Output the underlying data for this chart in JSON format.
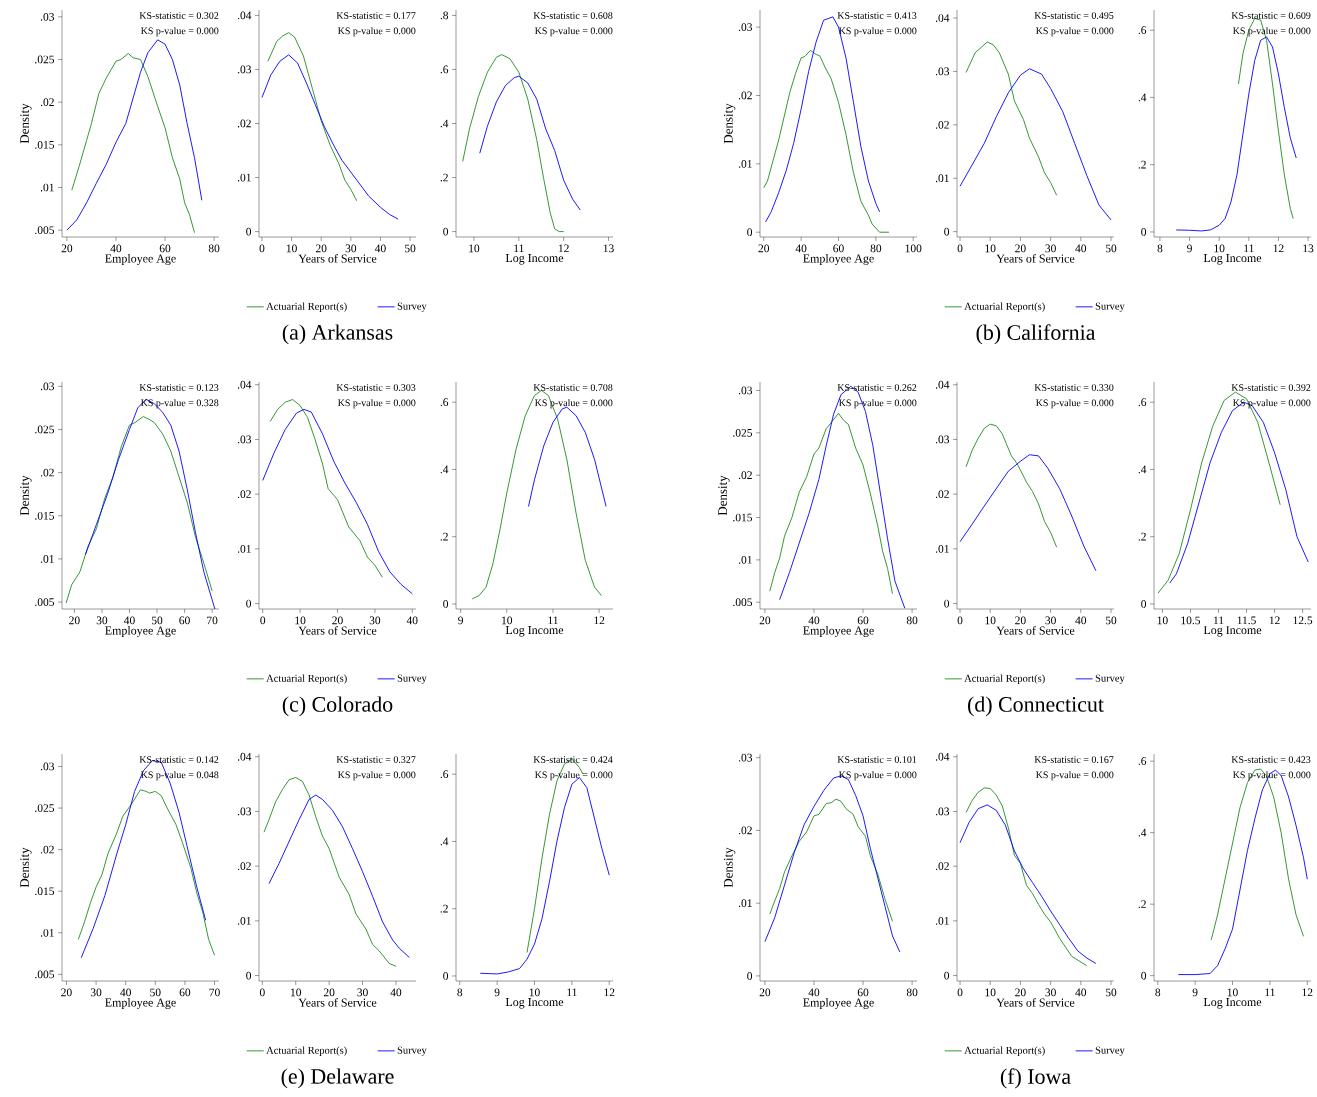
{
  "chart_data": [
    {
      "type": "line",
      "xlabel": "Employee Age",
      "ylabel": "Density",
      "xlim": [
        18,
        82
      ],
      "ylim": [
        0.0042,
        0.0308
      ],
      "xticks": [
        20,
        40,
        60,
        80
      ],
      "yticks": [
        {
          "value": 0.005,
          "label": ".005"
        },
        {
          "value": 0.01,
          "label": ".01"
        },
        {
          "value": 0.015,
          "label": ".015"
        },
        {
          "value": 0.02,
          "label": ".02"
        },
        {
          "value": 0.025,
          "label": ".025"
        },
        {
          "value": 0.03,
          "label": ".03"
        }
      ],
      "annotations": [
        "KS-statistic = 0.302",
        "KS p-value = 0.000"
      ],
      "series": [
        {
          "color": "#1e8c1e",
          "x": [
            22,
            25,
            28,
            30,
            33,
            36,
            40,
            42,
            45,
            47,
            50,
            53,
            57,
            60,
            63,
            66,
            68,
            70,
            72
          ],
          "values": [
            0.0097,
            0.0125,
            0.0155,
            0.0175,
            0.021,
            0.0228,
            0.0248,
            0.025,
            0.0257,
            0.0252,
            0.025,
            0.023,
            0.0195,
            0.017,
            0.0135,
            0.011,
            0.0082,
            0.0068,
            0.0047
          ]
        },
        {
          "color": "#0000ff",
          "x": [
            20,
            24,
            28,
            32,
            36,
            40,
            44,
            47,
            50,
            53,
            57,
            60,
            63,
            66,
            69,
            72,
            75
          ],
          "values": [
            0.005,
            0.0062,
            0.0082,
            0.0105,
            0.0127,
            0.0153,
            0.0175,
            0.0205,
            0.0235,
            0.0258,
            0.0273,
            0.0268,
            0.025,
            0.022,
            0.0175,
            0.0135,
            0.0085
          ]
        }
      ]
    },
    {
      "type": "line",
      "xlabel": "Years of Service",
      "title": "(a) Arkansas",
      "legend": "bottom",
      "xlim": [
        -1,
        52
      ],
      "ylim": [
        -0.001,
        0.041
      ],
      "xticks": [
        0,
        10,
        20,
        30,
        40,
        50
      ],
      "yticks": [
        0,
        {
          "value": 0.01,
          "label": ".01"
        },
        {
          "value": 0.02,
          "label": ".02"
        },
        {
          "value": 0.03,
          "label": ".03"
        },
        {
          "value": 0.04,
          "label": ".04"
        }
      ],
      "annotations": [
        "KS-statistic = 0.177",
        "KS p-value = 0.000"
      ],
      "series": [
        {
          "name": "Actuarial Report(s)",
          "color": "#1e8c1e",
          "x": [
            2,
            5,
            7,
            9,
            11,
            14,
            17,
            20,
            23,
            26,
            28,
            30,
            32
          ],
          "values": [
            0.0315,
            0.0352,
            0.0362,
            0.0368,
            0.036,
            0.0325,
            0.0265,
            0.0205,
            0.016,
            0.0125,
            0.0095,
            0.0078,
            0.0057
          ]
        },
        {
          "name": "Survey",
          "color": "#0000ff",
          "x": [
            0,
            3,
            6,
            9,
            12,
            15,
            18,
            21,
            24,
            27,
            30,
            33,
            36,
            40,
            43,
            46
          ],
          "values": [
            0.0248,
            0.029,
            0.0315,
            0.0327,
            0.0312,
            0.0275,
            0.0235,
            0.0195,
            0.0162,
            0.0132,
            0.011,
            0.0088,
            0.0066,
            0.0045,
            0.0032,
            0.0023
          ]
        }
      ]
    },
    {
      "type": "line",
      "xlabel": "Log Income",
      "xlim": [
        9.6,
        13.1
      ],
      "ylim": [
        -0.02,
        0.82
      ],
      "xticks": [
        10,
        11,
        12,
        13
      ],
      "yticks": [
        0,
        {
          "value": 0.2,
          "label": ".2"
        },
        {
          "value": 0.4,
          "label": ".4"
        },
        {
          "value": 0.6,
          "label": ".6"
        },
        {
          "value": 0.8,
          "label": ".8"
        }
      ],
      "annotations": [
        "KS-statistic = 0.608",
        "KS p-value = 0.000"
      ],
      "series": [
        {
          "color": "#1e8c1e",
          "x": [
            9.75,
            9.9,
            10.1,
            10.3,
            10.5,
            10.62,
            10.8,
            11.0,
            11.2,
            11.4,
            11.55,
            11.7,
            11.8,
            11.9,
            12.0
          ],
          "values": [
            0.26,
            0.38,
            0.5,
            0.59,
            0.645,
            0.655,
            0.64,
            0.59,
            0.49,
            0.34,
            0.2,
            0.07,
            0.01,
            0,
            0
          ]
        },
        {
          "color": "#0000ff",
          "x": [
            10.13,
            10.3,
            10.5,
            10.7,
            10.9,
            11.0,
            11.2,
            11.4,
            11.6,
            11.8,
            12.0,
            12.2,
            12.37
          ],
          "values": [
            0.29,
            0.39,
            0.48,
            0.54,
            0.57,
            0.575,
            0.55,
            0.49,
            0.38,
            0.3,
            0.19,
            0.12,
            0.08
          ]
        }
      ]
    },
    {
      "type": "line",
      "xlabel": "Employee Age",
      "ylabel": "Density",
      "xlim": [
        18,
        102
      ],
      "ylim": [
        -0.0007,
        0.0325
      ],
      "xticks": [
        20,
        40,
        60,
        80,
        100
      ],
      "yticks": [
        0,
        {
          "value": 0.01,
          "label": ".01"
        },
        {
          "value": 0.02,
          "label": ".02"
        },
        {
          "value": 0.03,
          "label": ".03"
        }
      ],
      "annotations": [
        "KS-statistic = 0.413",
        "KS p-value = 0.000"
      ],
      "series": [
        {
          "color": "#1e8c1e",
          "x": [
            20,
            22,
            25,
            28,
            31,
            34,
            37,
            40,
            42,
            45,
            48,
            50,
            53,
            56,
            60,
            64,
            68,
            72,
            76,
            78,
            82,
            87
          ],
          "values": [
            0.0065,
            0.0075,
            0.0105,
            0.0135,
            0.017,
            0.0205,
            0.0232,
            0.0255,
            0.0257,
            0.0266,
            0.026,
            0.0258,
            0.024,
            0.0225,
            0.019,
            0.0143,
            0.0087,
            0.0045,
            0.0025,
            0.0012,
            0,
            0
          ]
        },
        {
          "color": "#0000ff",
          "x": [
            21,
            24,
            28,
            32,
            36,
            40,
            44,
            48,
            52,
            57,
            60,
            64,
            68,
            72,
            76,
            80,
            82
          ],
          "values": [
            0.0015,
            0.003,
            0.0058,
            0.009,
            0.013,
            0.018,
            0.0235,
            0.0278,
            0.031,
            0.0315,
            0.03,
            0.0255,
            0.019,
            0.0125,
            0.0075,
            0.0042,
            0.003
          ]
        }
      ]
    },
    {
      "type": "line",
      "xlabel": "Years of Service",
      "title": "(b) California",
      "legend": "bottom",
      "xlim": [
        -1,
        51
      ],
      "ylim": [
        -0.001,
        0.0415
      ],
      "xticks": [
        0,
        10,
        20,
        30,
        40,
        50
      ],
      "yticks": [
        0,
        {
          "value": 0.01,
          "label": ".01"
        },
        {
          "value": 0.02,
          "label": ".02"
        },
        {
          "value": 0.03,
          "label": ".03"
        },
        {
          "value": 0.04,
          "label": ".04"
        }
      ],
      "annotations": [
        "KS-statistic = 0.495",
        "KS p-value = 0.000"
      ],
      "series": [
        {
          "name": "Actuarial Report(s)",
          "color": "#1e8c1e",
          "x": [
            2,
            5,
            7,
            9,
            11,
            13,
            16,
            18,
            21,
            23,
            26,
            28,
            30,
            32
          ],
          "values": [
            0.0298,
            0.0335,
            0.0345,
            0.0355,
            0.035,
            0.0335,
            0.0295,
            0.0245,
            0.021,
            0.0175,
            0.014,
            0.011,
            0.0092,
            0.0068
          ]
        },
        {
          "name": "Survey",
          "color": "#0000ff",
          "x": [
            0,
            4,
            8,
            12,
            16,
            20,
            23,
            27,
            30,
            34,
            38,
            42,
            46,
            50
          ],
          "values": [
            0.0085,
            0.0125,
            0.0165,
            0.0215,
            0.026,
            0.0293,
            0.0305,
            0.0295,
            0.0268,
            0.0225,
            0.0165,
            0.0105,
            0.005,
            0.0022
          ]
        }
      ]
    },
    {
      "type": "line",
      "xlabel": "Log Income",
      "xlim": [
        7.8,
        13.1
      ],
      "ylim": [
        -0.015,
        0.66
      ],
      "xticks": [
        8,
        9,
        10,
        11,
        12,
        13
      ],
      "yticks": [
        0,
        {
          "value": 0.2,
          "label": ".2"
        },
        {
          "value": 0.4,
          "label": ".4"
        },
        {
          "value": 0.6,
          "label": ".6"
        }
      ],
      "annotations": [
        "KS-statistic = 0.609",
        "KS p-value = 0.000"
      ],
      "series": [
        {
          "color": "#1e8c1e",
          "x": [
            10.65,
            10.8,
            11.0,
            11.2,
            11.4,
            11.6,
            11.8,
            12.0,
            12.2,
            12.4,
            12.5
          ],
          "values": [
            0.44,
            0.53,
            0.6,
            0.635,
            0.63,
            0.57,
            0.44,
            0.3,
            0.17,
            0.07,
            0.04
          ]
        },
        {
          "color": "#0000ff",
          "x": [
            8.55,
            9.0,
            9.4,
            9.7,
            10.0,
            10.2,
            10.4,
            10.6,
            10.8,
            11.0,
            11.2,
            11.4,
            11.6,
            11.8,
            12.0,
            12.2,
            12.4,
            12.6
          ],
          "values": [
            0.006,
            0.005,
            0.003,
            0.006,
            0.02,
            0.04,
            0.09,
            0.17,
            0.29,
            0.41,
            0.51,
            0.57,
            0.58,
            0.55,
            0.47,
            0.37,
            0.28,
            0.22
          ]
        }
      ]
    },
    {
      "type": "line",
      "xlabel": "Employee Age",
      "ylabel": "Density",
      "xlim": [
        15.5,
        72.5
      ],
      "ylim": [
        0.0042,
        0.0305
      ],
      "xticks": [
        20,
        30,
        40,
        50,
        60,
        70
      ],
      "yticks": [
        {
          "value": 0.005,
          "label": ".005"
        },
        {
          "value": 0.01,
          "label": ".01"
        },
        {
          "value": 0.015,
          "label": ".015"
        },
        {
          "value": 0.02,
          "label": ".02"
        },
        {
          "value": 0.025,
          "label": ".025"
        },
        {
          "value": 0.03,
          "label": ".03"
        }
      ],
      "annotations": [
        "KS-statistic = 0.123",
        "KS p-value = 0.328"
      ],
      "series": [
        {
          "color": "#1e8c1e",
          "x": [
            17,
            19,
            22,
            25,
            28,
            31,
            34,
            37,
            40,
            42,
            45,
            47,
            49,
            52,
            55,
            58,
            61,
            64,
            67,
            70
          ],
          "values": [
            0.0049,
            0.007,
            0.0085,
            0.0115,
            0.0135,
            0.017,
            0.0195,
            0.023,
            0.0255,
            0.0258,
            0.0265,
            0.0262,
            0.0258,
            0.0245,
            0.0225,
            0.0195,
            0.0165,
            0.0125,
            0.0095,
            0.0063
          ]
        },
        {
          "color": "#0000ff",
          "x": [
            24,
            28,
            32,
            36,
            40,
            43,
            46,
            49,
            52,
            55,
            58,
            61,
            64,
            67,
            71
          ],
          "values": [
            0.0105,
            0.014,
            0.0175,
            0.0215,
            0.025,
            0.0275,
            0.0285,
            0.028,
            0.027,
            0.0255,
            0.0225,
            0.018,
            0.013,
            0.0085,
            0.0042
          ]
        }
      ]
    },
    {
      "type": "line",
      "xlabel": "Years of Service",
      "title": "(c) Colorado",
      "legend": "bottom",
      "xlim": [
        -1,
        41
      ],
      "ylim": [
        -0.001,
        0.0405
      ],
      "xticks": [
        0,
        10,
        20,
        30,
        40
      ],
      "yticks": [
        0,
        {
          "value": 0.01,
          "label": ".01"
        },
        {
          "value": 0.02,
          "label": ".02"
        },
        {
          "value": 0.03,
          "label": ".03"
        },
        {
          "value": 0.04,
          "label": ".04"
        }
      ],
      "annotations": [
        "KS-statistic = 0.303",
        "KS p-value = 0.000"
      ],
      "series": [
        {
          "name": "Actuarial Report(s)",
          "color": "#1e8c1e",
          "x": [
            2,
            4,
            6,
            8,
            10,
            12,
            14,
            16,
            17.5,
            20,
            23,
            26,
            28,
            30,
            32
          ],
          "values": [
            0.0333,
            0.0355,
            0.0368,
            0.0373,
            0.0362,
            0.034,
            0.03,
            0.0255,
            0.021,
            0.019,
            0.014,
            0.0115,
            0.0085,
            0.007,
            0.0048
          ]
        },
        {
          "name": "Survey",
          "color": "#0000ff",
          "x": [
            0,
            3,
            6,
            9,
            11,
            13,
            16,
            19,
            22,
            25,
            28,
            31,
            34,
            37,
            40
          ],
          "values": [
            0.0225,
            0.0275,
            0.0318,
            0.0348,
            0.0355,
            0.035,
            0.031,
            0.026,
            0.022,
            0.0185,
            0.0145,
            0.0095,
            0.0058,
            0.0035,
            0.0018
          ]
        }
      ]
    },
    {
      "type": "line",
      "xlabel": "Log Income",
      "xlim": [
        8.9,
        12.3
      ],
      "ylim": [
        -0.015,
        0.66
      ],
      "xticks": [
        9,
        10,
        11,
        12
      ],
      "yticks": [
        0,
        {
          "value": 0.2,
          "label": ".2"
        },
        {
          "value": 0.4,
          "label": ".4"
        },
        {
          "value": 0.6,
          "label": ".6"
        }
      ],
      "annotations": [
        "KS-statistic = 0.708",
        "KS p-value = 0.000"
      ],
      "series": [
        {
          "color": "#1e8c1e",
          "x": [
            9.25,
            9.4,
            9.55,
            9.7,
            9.85,
            10.0,
            10.2,
            10.4,
            10.6,
            10.75,
            10.9,
            11.1,
            11.3,
            11.5,
            11.7,
            11.9,
            12.05
          ],
          "values": [
            0.015,
            0.025,
            0.05,
            0.12,
            0.22,
            0.33,
            0.46,
            0.56,
            0.62,
            0.635,
            0.62,
            0.55,
            0.43,
            0.27,
            0.13,
            0.05,
            0.025
          ]
        },
        {
          "color": "#0000ff",
          "x": [
            10.47,
            10.6,
            10.8,
            11.0,
            11.2,
            11.3,
            11.5,
            11.7,
            11.9,
            12.15
          ],
          "values": [
            0.29,
            0.37,
            0.47,
            0.54,
            0.58,
            0.585,
            0.56,
            0.51,
            0.43,
            0.29
          ]
        }
      ]
    },
    {
      "type": "line",
      "xlabel": "Employee Age",
      "ylabel": "Density",
      "xlim": [
        18,
        82
      ],
      "ylim": [
        0.0042,
        0.031
      ],
      "xticks": [
        20,
        40,
        60,
        80
      ],
      "yticks": [
        {
          "value": 0.005,
          "label": ".005"
        },
        {
          "value": 0.01,
          "label": ".01"
        },
        {
          "value": 0.015,
          "label": ".015"
        },
        {
          "value": 0.02,
          "label": ".02"
        },
        {
          "value": 0.025,
          "label": ".025"
        },
        {
          "value": 0.03,
          "label": ".03"
        }
      ],
      "annotations": [
        "KS-statistic = 0.262",
        "KS p-value = 0.000"
      ],
      "series": [
        {
          "color": "#1e8c1e",
          "x": [
            22,
            24,
            26,
            28,
            31,
            34,
            37,
            40,
            42,
            45,
            47,
            50,
            52,
            54,
            57,
            60,
            63,
            66,
            68,
            70,
            72
          ],
          "values": [
            0.0063,
            0.0085,
            0.0102,
            0.0128,
            0.015,
            0.018,
            0.0198,
            0.0225,
            0.0232,
            0.0255,
            0.0262,
            0.0273,
            0.0265,
            0.026,
            0.0232,
            0.0212,
            0.0178,
            0.014,
            0.011,
            0.009,
            0.006
          ]
        },
        {
          "color": "#0000ff",
          "x": [
            26,
            30,
            34,
            38,
            42,
            45,
            48,
            51,
            55,
            58,
            61,
            64,
            67,
            70,
            73,
            77
          ],
          "values": [
            0.0053,
            0.0085,
            0.012,
            0.0155,
            0.0195,
            0.0235,
            0.0272,
            0.0295,
            0.0305,
            0.0298,
            0.0275,
            0.0235,
            0.018,
            0.0125,
            0.0075,
            0.0043
          ]
        }
      ]
    },
    {
      "type": "line",
      "xlabel": "Years of Service",
      "title": "(d) Connecticut",
      "legend": "bottom",
      "xlim": [
        -1,
        51
      ],
      "ylim": [
        -0.001,
        0.0405
      ],
      "xticks": [
        0,
        10,
        20,
        30,
        40,
        50
      ],
      "yticks": [
        0,
        {
          "value": 0.01,
          "label": ".01"
        },
        {
          "value": 0.02,
          "label": ".02"
        },
        {
          "value": 0.03,
          "label": ".03"
        },
        {
          "value": 0.04,
          "label": ".04"
        }
      ],
      "annotations": [
        "KS-statistic = 0.330",
        "KS p-value = 0.000"
      ],
      "series": [
        {
          "name": "Actuarial Report(s)",
          "color": "#1e8c1e",
          "x": [
            2,
            4,
            6,
            8,
            10,
            12,
            14,
            17,
            19,
            22,
            24,
            26,
            28,
            30,
            32
          ],
          "values": [
            0.025,
            0.028,
            0.0302,
            0.032,
            0.0328,
            0.0325,
            0.031,
            0.027,
            0.0255,
            0.0222,
            0.0205,
            0.0182,
            0.015,
            0.013,
            0.0103
          ]
        },
        {
          "name": "Survey",
          "color": "#0000ff",
          "x": [
            0,
            4,
            8,
            12,
            16,
            20,
            23,
            26,
            29,
            33,
            37,
            41,
            45
          ],
          "values": [
            0.0113,
            0.0145,
            0.0178,
            0.021,
            0.0242,
            0.026,
            0.0272,
            0.027,
            0.0248,
            0.021,
            0.016,
            0.0105,
            0.006
          ]
        }
      ]
    },
    {
      "type": "line",
      "xlabel": "Log Income",
      "xlim": [
        9.85,
        12.65
      ],
      "ylim": [
        -0.015,
        0.66
      ],
      "xticks": [
        10,
        10.5,
        11,
        11.5,
        12,
        12.5
      ],
      "yticks": [
        0,
        {
          "value": 0.2,
          "label": ".2"
        },
        {
          "value": 0.4,
          "label": ".4"
        },
        {
          "value": 0.6,
          "label": ".6"
        }
      ],
      "annotations": [
        "KS-statistic = 0.392",
        "KS p-value = 0.000"
      ],
      "series": [
        {
          "color": "#1e8c1e",
          "x": [
            9.92,
            10.1,
            10.3,
            10.5,
            10.7,
            10.9,
            11.1,
            11.3,
            11.5,
            11.7,
            11.9,
            12.1
          ],
          "values": [
            0.032,
            0.07,
            0.15,
            0.28,
            0.42,
            0.53,
            0.605,
            0.63,
            0.61,
            0.54,
            0.42,
            0.295
          ]
        },
        {
          "color": "#0000ff",
          "x": [
            10.13,
            10.25,
            10.45,
            10.65,
            10.85,
            11.05,
            11.25,
            11.45,
            11.6,
            11.8,
            12.0,
            12.2,
            12.4,
            12.6
          ],
          "values": [
            0.062,
            0.09,
            0.18,
            0.3,
            0.42,
            0.51,
            0.575,
            0.6,
            0.59,
            0.54,
            0.45,
            0.34,
            0.2,
            0.125
          ]
        }
      ]
    },
    {
      "type": "line",
      "xlabel": "Employee Age",
      "ylabel": "Density",
      "xlim": [
        18.5,
        71.5
      ],
      "ylim": [
        0.0042,
        0.0315
      ],
      "xticks": [
        20,
        30,
        40,
        50,
        60,
        70
      ],
      "yticks": [
        {
          "value": 0.005,
          "label": ".005"
        },
        {
          "value": 0.01,
          "label": ".01"
        },
        {
          "value": 0.015,
          "label": ".015"
        },
        {
          "value": 0.02,
          "label": ".02"
        },
        {
          "value": 0.025,
          "label": ".025"
        },
        {
          "value": 0.03,
          "label": ".03"
        }
      ],
      "annotations": [
        "KS-statistic = 0.142",
        "KS p-value = 0.048"
      ],
      "series": [
        {
          "color": "#1e8c1e",
          "x": [
            24,
            26,
            28,
            30,
            32,
            34,
            37,
            39,
            42,
            45,
            47,
            48,
            50,
            52,
            54,
            57,
            59,
            62,
            64,
            66,
            68,
            70
          ],
          "values": [
            0.0092,
            0.0112,
            0.0135,
            0.0155,
            0.017,
            0.0195,
            0.022,
            0.024,
            0.0255,
            0.0272,
            0.027,
            0.0268,
            0.027,
            0.0265,
            0.025,
            0.023,
            0.021,
            0.0178,
            0.0148,
            0.0125,
            0.0092,
            0.0073
          ]
        },
        {
          "color": "#0000ff",
          "x": [
            25,
            29,
            33,
            37,
            40,
            43,
            46,
            49,
            52,
            55,
            58,
            61,
            64,
            67
          ],
          "values": [
            0.007,
            0.0105,
            0.0145,
            0.0195,
            0.023,
            0.027,
            0.0295,
            0.0307,
            0.0305,
            0.028,
            0.0245,
            0.02,
            0.0155,
            0.0115
          ]
        }
      ]
    },
    {
      "type": "line",
      "xlabel": "Years of Service",
      "title": "(e) Delaware",
      "legend": "bottom",
      "xlim": [
        -1,
        46
      ],
      "ylim": [
        -0.001,
        0.0405
      ],
      "xticks": [
        0,
        10,
        20,
        30,
        40
      ],
      "yticks": [
        0,
        {
          "value": 0.01,
          "label": ".01"
        },
        {
          "value": 0.02,
          "label": ".02"
        },
        {
          "value": 0.03,
          "label": ".03"
        },
        {
          "value": 0.04,
          "label": ".04"
        }
      ],
      "annotations": [
        "KS-statistic = 0.327",
        "KS p-value = 0.000"
      ],
      "series": [
        {
          "name": "Actuarial Report(s)",
          "color": "#1e8c1e",
          "x": [
            0.5,
            2,
            4,
            6,
            8,
            10,
            12,
            14,
            16,
            18,
            20,
            23,
            26,
            28,
            31,
            33,
            35,
            38,
            40
          ],
          "values": [
            0.0262,
            0.0285,
            0.0318,
            0.034,
            0.0358,
            0.0362,
            0.0355,
            0.033,
            0.029,
            0.0255,
            0.0232,
            0.018,
            0.0148,
            0.0113,
            0.0085,
            0.0057,
            0.0045,
            0.0022,
            0.0017
          ]
        },
        {
          "name": "Survey",
          "color": "#0000ff",
          "x": [
            2,
            5,
            8,
            11,
            14,
            16,
            18,
            21,
            24,
            27,
            30,
            33,
            36,
            39,
            41,
            44
          ],
          "values": [
            0.0168,
            0.0205,
            0.0245,
            0.0285,
            0.0322,
            0.033,
            0.0322,
            0.0302,
            0.0272,
            0.0232,
            0.019,
            0.0145,
            0.0098,
            0.0065,
            0.005,
            0.0033
          ]
        }
      ]
    },
    {
      "type": "line",
      "xlabel": "Log Income",
      "xlim": [
        7.9,
        12.1
      ],
      "ylim": [
        -0.015,
        0.66
      ],
      "xticks": [
        8,
        9,
        10,
        11,
        12
      ],
      "yticks": [
        0,
        {
          "value": 0.2,
          "label": ".2"
        },
        {
          "value": 0.4,
          "label": ".4"
        },
        {
          "value": 0.6,
          "label": ".6"
        }
      ],
      "annotations": [
        "KS-statistic = 0.424",
        "KS p-value = 0.000"
      ],
      "series": [
        {
          "color": "#1e8c1e",
          "x": [
            9.8,
            10.0,
            10.2,
            10.4,
            10.6,
            10.8,
            11.0,
            11.2,
            11.3
          ],
          "values": [
            0.07,
            0.2,
            0.35,
            0.48,
            0.58,
            0.63,
            0.645,
            0.62,
            0.6
          ]
        },
        {
          "color": "#0000ff",
          "x": [
            8.55,
            9.0,
            9.3,
            9.6,
            9.8,
            10.0,
            10.2,
            10.4,
            10.6,
            10.8,
            11.0,
            11.2,
            11.4,
            11.6,
            11.8,
            12.0
          ],
          "values": [
            0.008,
            0.006,
            0.012,
            0.022,
            0.05,
            0.095,
            0.17,
            0.28,
            0.4,
            0.5,
            0.57,
            0.59,
            0.56,
            0.47,
            0.38,
            0.3
          ]
        }
      ]
    },
    {
      "type": "line",
      "xlabel": "Employee Age",
      "ylabel": "Density",
      "xlim": [
        18,
        82
      ],
      "ylim": [
        -0.0007,
        0.0305
      ],
      "xticks": [
        20,
        40,
        60,
        80
      ],
      "yticks": [
        0,
        {
          "value": 0.01,
          "label": ".01"
        },
        {
          "value": 0.02,
          "label": ".02"
        },
        {
          "value": 0.03,
          "label": ".03"
        }
      ],
      "annotations": [
        "KS-statistic = 0.101",
        "KS p-value = 0.000"
      ],
      "series": [
        {
          "color": "#1e8c1e",
          "x": [
            22,
            24,
            26,
            28,
            31,
            34,
            37,
            40,
            42,
            45,
            47,
            49,
            51,
            53,
            56,
            58,
            61,
            63,
            66,
            69,
            72
          ],
          "values": [
            0.0085,
            0.0103,
            0.012,
            0.0143,
            0.0165,
            0.0185,
            0.0198,
            0.022,
            0.0222,
            0.0237,
            0.0238,
            0.0243,
            0.024,
            0.023,
            0.0222,
            0.0205,
            0.0192,
            0.0165,
            0.014,
            0.0105,
            0.0075
          ]
        },
        {
          "color": "#0000ff",
          "x": [
            20,
            24,
            28,
            32,
            36,
            40,
            44,
            48,
            51,
            54,
            57,
            60,
            63,
            66,
            69,
            72,
            75
          ],
          "values": [
            0.0047,
            0.008,
            0.0125,
            0.017,
            0.0208,
            0.0233,
            0.0255,
            0.0272,
            0.0275,
            0.027,
            0.0248,
            0.022,
            0.0175,
            0.0135,
            0.0095,
            0.0055,
            0.0033
          ]
        }
      ]
    },
    {
      "type": "line",
      "xlabel": "Years of Service",
      "title": "(f) Iowa",
      "legend": "bottom",
      "xlim": [
        -1,
        51
      ],
      "ylim": [
        -0.001,
        0.0405
      ],
      "xticks": [
        0,
        10,
        20,
        30,
        40,
        50
      ],
      "yticks": [
        0,
        {
          "value": 0.01,
          "label": ".01"
        },
        {
          "value": 0.02,
          "label": ".02"
        },
        {
          "value": 0.03,
          "label": ".03"
        },
        {
          "value": 0.04,
          "label": ".04"
        }
      ],
      "annotations": [
        "KS-statistic = 0.167",
        "KS p-value = 0.000"
      ],
      "series": [
        {
          "name": "Actuarial Report(s)",
          "color": "#1e8c1e",
          "x": [
            2,
            4,
            6,
            8,
            10,
            12,
            14,
            16,
            18,
            20,
            22,
            24,
            26,
            28,
            30,
            33,
            37,
            42
          ],
          "values": [
            0.0298,
            0.032,
            0.0335,
            0.0343,
            0.0342,
            0.033,
            0.031,
            0.027,
            0.022,
            0.0205,
            0.0165,
            0.015,
            0.013,
            0.0112,
            0.0098,
            0.0068,
            0.0035,
            0.0018
          ]
        },
        {
          "name": "Survey",
          "color": "#0000ff",
          "x": [
            0,
            3,
            6,
            9,
            12,
            15,
            18,
            21,
            24,
            27,
            30,
            33,
            36,
            39,
            42,
            45
          ],
          "values": [
            0.0243,
            0.028,
            0.0305,
            0.0312,
            0.0302,
            0.0275,
            0.0228,
            0.0195,
            0.017,
            0.0145,
            0.0118,
            0.0093,
            0.0068,
            0.0045,
            0.0032,
            0.0022
          ]
        }
      ]
    },
    {
      "type": "line",
      "xlabel": "Log Income",
      "xlim": [
        7.9,
        12.1
      ],
      "ylim": [
        -0.015,
        0.62
      ],
      "xticks": [
        8,
        9,
        10,
        11,
        12
      ],
      "yticks": [
        0,
        {
          "value": 0.2,
          "label": ".2"
        },
        {
          "value": 0.4,
          "label": ".4"
        },
        {
          "value": 0.6,
          "label": ".6"
        }
      ],
      "annotations": [
        "KS-statistic = 0.423",
        "KS p-value = 0.000"
      ],
      "series": [
        {
          "color": "#1e8c1e",
          "x": [
            9.43,
            9.6,
            9.8,
            10.0,
            10.2,
            10.4,
            10.6,
            10.75,
            10.9,
            11.1,
            11.3,
            11.5,
            11.7,
            11.9
          ],
          "values": [
            0.1,
            0.17,
            0.27,
            0.37,
            0.47,
            0.54,
            0.575,
            0.578,
            0.56,
            0.5,
            0.4,
            0.27,
            0.17,
            0.11
          ]
        },
        {
          "color": "#0000ff",
          "x": [
            8.55,
            9.0,
            9.4,
            9.6,
            9.8,
            10.0,
            10.2,
            10.4,
            10.6,
            10.8,
            11.0,
            11.15,
            11.3,
            11.5,
            11.7,
            11.9,
            12.0
          ],
          "values": [
            0.003,
            0.003,
            0.006,
            0.028,
            0.075,
            0.13,
            0.24,
            0.35,
            0.44,
            0.52,
            0.565,
            0.575,
            0.56,
            0.5,
            0.42,
            0.33,
            0.27
          ]
        }
      ]
    }
  ]
}
